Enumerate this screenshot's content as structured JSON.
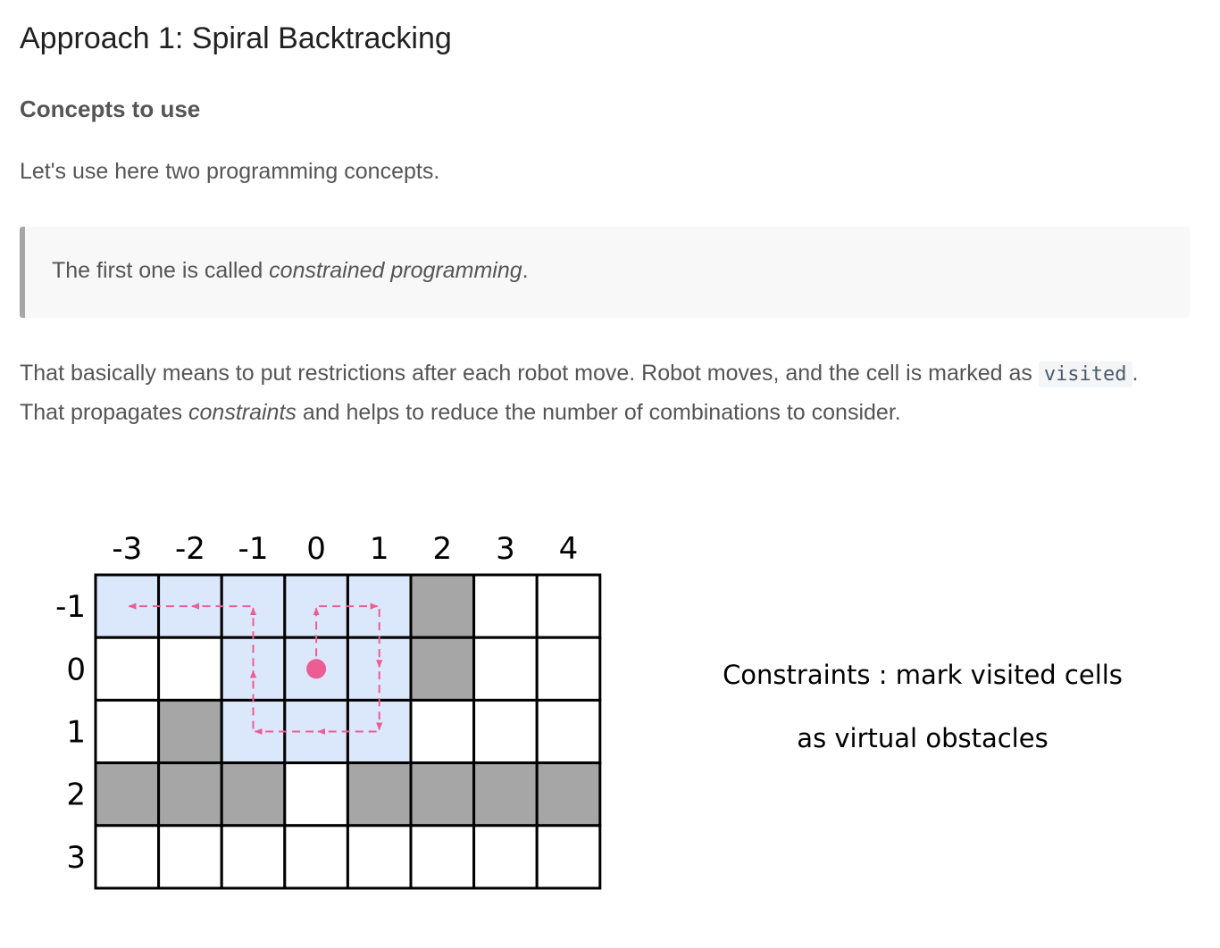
{
  "heading": "Approach 1: Spiral Backtracking",
  "subheading": "Concepts to use",
  "intro": "Let's use here two programming concepts.",
  "quote": {
    "prefix": "The first one is called ",
    "emphasis": "constrained programming",
    "suffix": "."
  },
  "body": {
    "part1": "That basically means to put restrictions after each robot move. Robot moves, and the cell is marked as ",
    "code": "visited",
    "part2": ". That propagates ",
    "emphasis": "constraints",
    "part3": " and helps to reduce the number of combinations to consider."
  },
  "diagram": {
    "col_labels": [
      "-3",
      "-2",
      "-1",
      "0",
      "1",
      "2",
      "3",
      "4"
    ],
    "row_labels": [
      "-1",
      "0",
      "1",
      "2",
      "3"
    ],
    "grid": [
      [
        "v",
        "v",
        "v",
        "v",
        "v",
        "o",
        "e",
        "e"
      ],
      [
        "e",
        "e",
        "v",
        "v",
        "v",
        "o",
        "e",
        "e"
      ],
      [
        "e",
        "o",
        "v",
        "v",
        "v",
        "e",
        "e",
        "e"
      ],
      [
        "o",
        "o",
        "o",
        "e",
        "o",
        "o",
        "o",
        "o"
      ],
      [
        "e",
        "e",
        "e",
        "e",
        "e",
        "e",
        "e",
        "e"
      ]
    ],
    "robot_cell": {
      "row": "0",
      "col": "0"
    },
    "path": [
      {
        "row": "0",
        "col": "0"
      },
      {
        "row": "-1",
        "col": "0"
      },
      {
        "row": "-1",
        "col": "1"
      },
      {
        "row": "1",
        "col": "1"
      },
      {
        "row": "1",
        "col": "-1"
      },
      {
        "row": "-1",
        "col": "-1"
      },
      {
        "row": "-1",
        "col": "-3"
      }
    ],
    "caption_line1": "Constraints : mark visited cells",
    "caption_line2": "as virtual obstacles",
    "colors": {
      "visited": "#dbe7fb",
      "obstacle": "#a6a6a6",
      "empty": "#ffffff",
      "grid_line": "#000000",
      "path": "#ec5e93"
    }
  }
}
